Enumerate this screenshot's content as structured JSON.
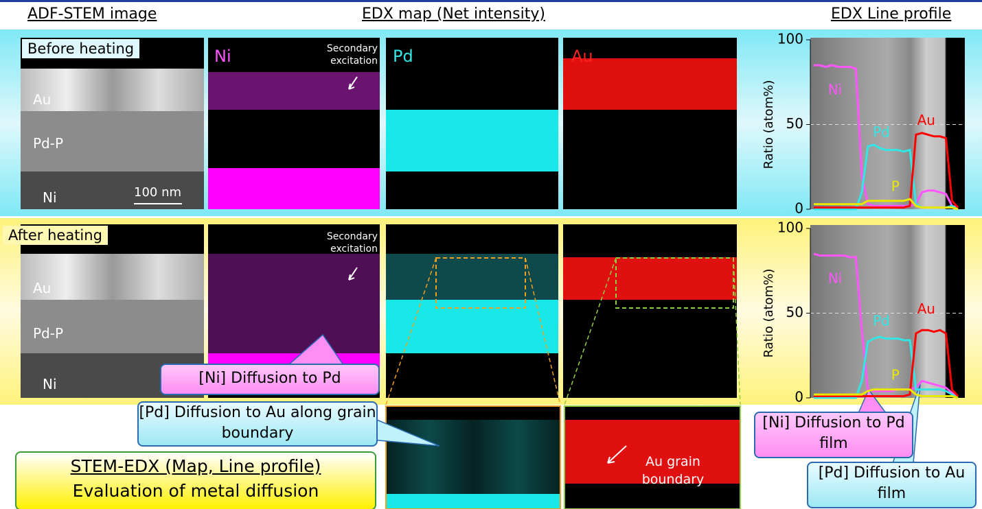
{
  "header": {
    "stem": "ADF-STEM image",
    "map": "EDX map (Net intensity)",
    "profile": "EDX Line profile"
  },
  "rows": [
    {
      "label": "Before heating",
      "layers": [
        "Au",
        "Pd-P",
        "Ni"
      ],
      "scale_bar": "100 nm",
      "secondary": "Secondary excitation",
      "elements": [
        "Ni",
        "Pd",
        "Au"
      ]
    },
    {
      "label": "After heating",
      "layers": [
        "Au",
        "Pd-P",
        "Ni"
      ],
      "secondary": "Secondary excitation"
    }
  ],
  "callouts": {
    "ni_diffusion": "[Ni] Diffusion to Pd",
    "pd_diffusion": "[Pd] Diffusion to Au along grain boundary",
    "grain_boundary": "Au grain boundary",
    "summary_title": "STEM-EDX (Map, Line profile)",
    "summary_text": "Evaluation of metal diffusion",
    "ni_film": "[Ni] Diffusion to Pd film",
    "pd_film": "[Pd] Diffusion to Au film"
  },
  "chart_data": [
    {
      "type": "line",
      "y_label": "Ratio (atom%)",
      "ylim": [
        0,
        100
      ],
      "yticks": [
        0,
        50,
        100
      ],
      "series": [
        {
          "name": "Ni",
          "color": "#ff55ff",
          "values": [
            85,
            85,
            84,
            85,
            84,
            84,
            84,
            83,
            20,
            3,
            2,
            2,
            2,
            2,
            2,
            2,
            2,
            3,
            10,
            11,
            11,
            10,
            9,
            2,
            1
          ]
        },
        {
          "name": "Pd",
          "color": "#33e6e6",
          "values": [
            0,
            0,
            0,
            0,
            0,
            0,
            0,
            0,
            10,
            37,
            38,
            36,
            35,
            35,
            35,
            34,
            35,
            3,
            1,
            1,
            1,
            1,
            1,
            2,
            0
          ]
        },
        {
          "name": "Au",
          "color": "#ff0000",
          "values": [
            1,
            1,
            1,
            1,
            1,
            1,
            1,
            1,
            1,
            1,
            1,
            1,
            1,
            1,
            1,
            1,
            2,
            44,
            45,
            44,
            43,
            43,
            42,
            5,
            1
          ]
        },
        {
          "name": "P",
          "color": "#e8e800",
          "values": [
            3,
            3,
            3,
            3,
            3,
            3,
            3,
            3,
            3,
            5,
            5,
            5,
            5,
            5,
            5,
            5,
            6,
            2,
            1,
            1,
            1,
            1,
            1,
            1,
            0
          ]
        }
      ]
    },
    {
      "type": "line",
      "y_label": "Ratio (atom%)",
      "ylim": [
        0,
        100
      ],
      "yticks": [
        0,
        50,
        100
      ],
      "series": [
        {
          "name": "Ni",
          "color": "#ff55ff",
          "values": [
            85,
            84,
            84,
            84,
            84,
            84,
            83,
            83,
            40,
            5,
            4,
            4,
            4,
            4,
            5,
            5,
            5,
            6,
            10,
            9,
            8,
            7,
            6,
            3,
            1
          ]
        },
        {
          "name": "Pd",
          "color": "#33e6e6",
          "values": [
            0,
            0,
            0,
            0,
            0,
            0,
            0,
            0,
            10,
            33,
            35,
            36,
            35,
            35,
            35,
            34,
            34,
            5,
            5,
            5,
            5,
            5,
            4,
            2,
            0
          ]
        },
        {
          "name": "Au",
          "color": "#ff0000",
          "values": [
            1,
            1,
            1,
            1,
            1,
            1,
            1,
            1,
            1,
            1,
            1,
            1,
            1,
            1,
            1,
            1,
            2,
            38,
            40,
            40,
            39,
            40,
            38,
            5,
            1
          ]
        },
        {
          "name": "P",
          "color": "#e8e800",
          "values": [
            2,
            2,
            2,
            2,
            2,
            2,
            2,
            2,
            2,
            4,
            5,
            5,
            5,
            5,
            5,
            5,
            5,
            2,
            1,
            1,
            1,
            1,
            1,
            1,
            0
          ]
        }
      ]
    }
  ]
}
